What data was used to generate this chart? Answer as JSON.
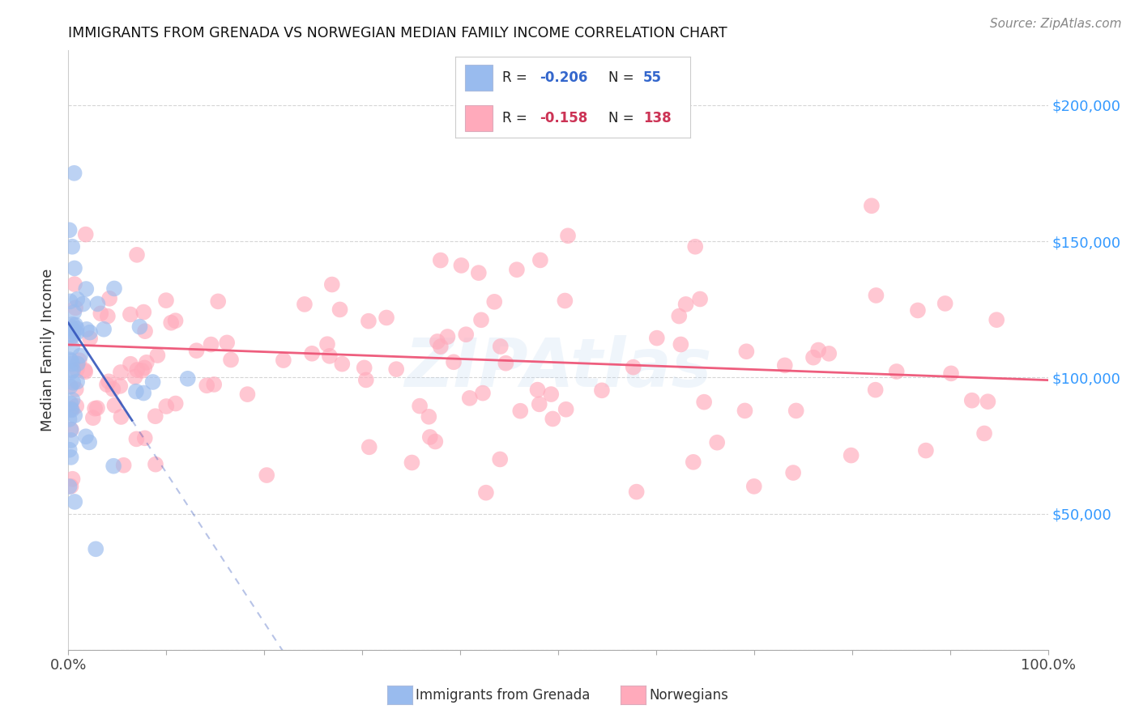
{
  "title": "IMMIGRANTS FROM GRENADA VS NORWEGIAN MEDIAN FAMILY INCOME CORRELATION CHART",
  "source": "Source: ZipAtlas.com",
  "ylabel": "Median Family Income",
  "xlim": [
    0.0,
    1.0
  ],
  "ylim": [
    0,
    220000
  ],
  "background_color": "#ffffff",
  "grid_color": "#cccccc",
  "watermark": "ZIPAtlas",
  "blue_line_color": "#3355bb",
  "pink_line_color": "#ee5577",
  "blue_scatter_color": "#99bbee",
  "pink_scatter_color": "#ffaabb",
  "dot_size": 200,
  "dot_alpha": 0.65
}
